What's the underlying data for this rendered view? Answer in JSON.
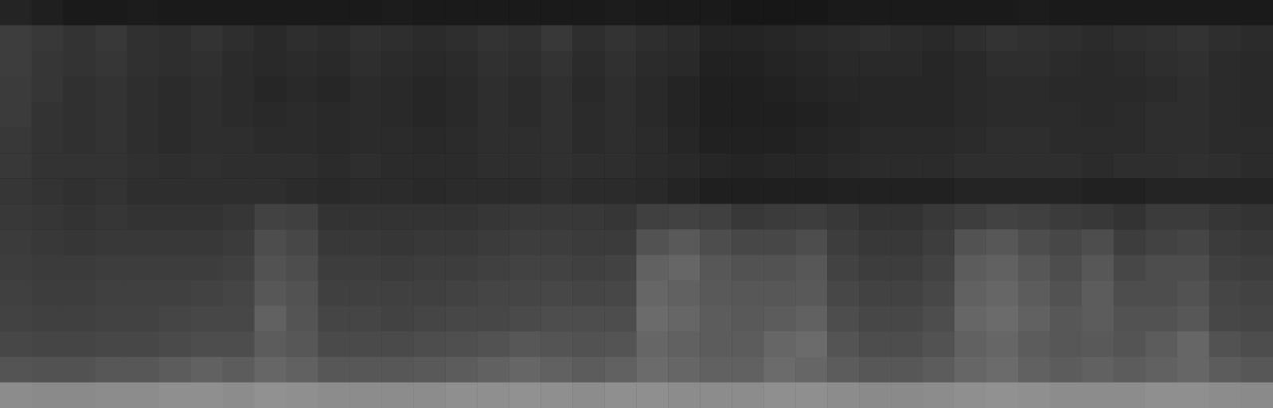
{
  "chart_data": {
    "type": "heatmap",
    "tick_labels": false,
    "grid": false,
    "zlim": [
      0,
      100
    ],
    "cells": [
      [
        14,
        12,
        10,
        10,
        11,
        10,
        10,
        10,
        10,
        10,
        10,
        10,
        11,
        10,
        10,
        10,
        10,
        10,
        10,
        11,
        10,
        10,
        10,
        9,
        9,
        9,
        10,
        10,
        10,
        10,
        10,
        10,
        11,
        10,
        10,
        10,
        10,
        10,
        10,
        10
      ],
      [
        24,
        22,
        20,
        22,
        19,
        18,
        20,
        18,
        16,
        18,
        17,
        19,
        18,
        17,
        18,
        20,
        19,
        22,
        18,
        20,
        18,
        17,
        14,
        14,
        15,
        16,
        17,
        18,
        17,
        16,
        18,
        20,
        19,
        18,
        17,
        18,
        19,
        20,
        18,
        17
      ],
      [
        24,
        21,
        20,
        21,
        19,
        18,
        19,
        17,
        16,
        17,
        16,
        18,
        17,
        16,
        17,
        19,
        18,
        20,
        17,
        19,
        17,
        16,
        13,
        13,
        14,
        15,
        16,
        16,
        16,
        15,
        16,
        18,
        18,
        17,
        16,
        17,
        18,
        19,
        17,
        16
      ],
      [
        23,
        21,
        19,
        20,
        18,
        17,
        18,
        17,
        15,
        16,
        15,
        17,
        16,
        15,
        16,
        18,
        17,
        19,
        16,
        18,
        16,
        14,
        12,
        12,
        13,
        14,
        15,
        15,
        15,
        15,
        16,
        17,
        17,
        16,
        16,
        16,
        17,
        18,
        17,
        16
      ],
      [
        23,
        20,
        19,
        20,
        18,
        17,
        18,
        17,
        16,
        17,
        16,
        17,
        16,
        15,
        16,
        18,
        17,
        19,
        17,
        18,
        16,
        14,
        12,
        12,
        12,
        13,
        14,
        15,
        15,
        15,
        16,
        17,
        17,
        17,
        16,
        17,
        18,
        18,
        17,
        16
      ],
      [
        22,
        20,
        19,
        20,
        18,
        17,
        18,
        18,
        17,
        17,
        16,
        17,
        17,
        16,
        17,
        18,
        18,
        19,
        17,
        18,
        17,
        15,
        13,
        13,
        13,
        14,
        15,
        16,
        16,
        16,
        17,
        18,
        18,
        17,
        17,
        17,
        18,
        18,
        17,
        17
      ],
      [
        22,
        20,
        20,
        20,
        19,
        18,
        19,
        18,
        18,
        18,
        17,
        18,
        17,
        17,
        17,
        18,
        18,
        19,
        18,
        18,
        17,
        16,
        15,
        14,
        15,
        15,
        16,
        17,
        17,
        17,
        18,
        18,
        18,
        18,
        17,
        18,
        18,
        19,
        18,
        17
      ],
      [
        21,
        20,
        19,
        20,
        18,
        18,
        18,
        18,
        18,
        17,
        16,
        17,
        17,
        16,
        17,
        17,
        17,
        18,
        17,
        17,
        16,
        14,
        12,
        12,
        12,
        12,
        13,
        13,
        13,
        13,
        14,
        14,
        14,
        14,
        13,
        13,
        14,
        14,
        14,
        14
      ],
      [
        22,
        21,
        20,
        21,
        20,
        20,
        20,
        21,
        26,
        25,
        20,
        20,
        20,
        20,
        20,
        21,
        22,
        22,
        22,
        21,
        25,
        26,
        25,
        22,
        23,
        24,
        22,
        20,
        20,
        22,
        24,
        26,
        25,
        23,
        22,
        20,
        23,
        23,
        21,
        20
      ],
      [
        23,
        22,
        21,
        22,
        22,
        22,
        22,
        23,
        30,
        28,
        22,
        22,
        21,
        22,
        22,
        23,
        24,
        24,
        23,
        23,
        32,
        35,
        30,
        28,
        28,
        30,
        24,
        22,
        22,
        24,
        32,
        34,
        30,
        28,
        30,
        24,
        26,
        27,
        23,
        22
      ],
      [
        24,
        23,
        23,
        24,
        24,
        24,
        24,
        25,
        32,
        30,
        24,
        24,
        23,
        24,
        24,
        25,
        26,
        26,
        25,
        26,
        38,
        40,
        34,
        32,
        32,
        34,
        26,
        24,
        24,
        26,
        36,
        38,
        34,
        30,
        34,
        28,
        30,
        30,
        25,
        24
      ],
      [
        25,
        24,
        24,
        25,
        25,
        25,
        26,
        27,
        34,
        32,
        25,
        25,
        25,
        25,
        26,
        27,
        27,
        28,
        27,
        28,
        40,
        38,
        35,
        34,
        34,
        35,
        28,
        26,
        26,
        28,
        38,
        40,
        36,
        32,
        36,
        30,
        30,
        32,
        27,
        26
      ],
      [
        26,
        25,
        25,
        26,
        26,
        27,
        28,
        28,
        38,
        33,
        27,
        27,
        26,
        27,
        28,
        28,
        29,
        30,
        30,
        30,
        42,
        40,
        36,
        35,
        36,
        38,
        30,
        28,
        28,
        30,
        40,
        42,
        38,
        34,
        36,
        32,
        32,
        34,
        28,
        27
      ],
      [
        28,
        27,
        27,
        28,
        28,
        29,
        30,
        30,
        36,
        34,
        29,
        29,
        29,
        30,
        31,
        32,
        34,
        33,
        32,
        33,
        40,
        38,
        36,
        36,
        40,
        42,
        33,
        30,
        30,
        32,
        38,
        40,
        36,
        34,
        35,
        33,
        36,
        40,
        32,
        30
      ],
      [
        33,
        32,
        32,
        34,
        34,
        36,
        38,
        36,
        40,
        38,
        34,
        34,
        34,
        35,
        36,
        38,
        40,
        38,
        36,
        38,
        42,
        40,
        38,
        38,
        42,
        40,
        36,
        34,
        34,
        36,
        40,
        42,
        38,
        36,
        38,
        36,
        38,
        40,
        36,
        34
      ],
      [
        55,
        54,
        54,
        55,
        55,
        56,
        56,
        55,
        57,
        56,
        55,
        55,
        55,
        55,
        56,
        56,
        57,
        56,
        55,
        56,
        56,
        55,
        55,
        55,
        56,
        56,
        55,
        54,
        54,
        55,
        56,
        57,
        56,
        55,
        55,
        55,
        56,
        56,
        55,
        54
      ]
    ]
  }
}
